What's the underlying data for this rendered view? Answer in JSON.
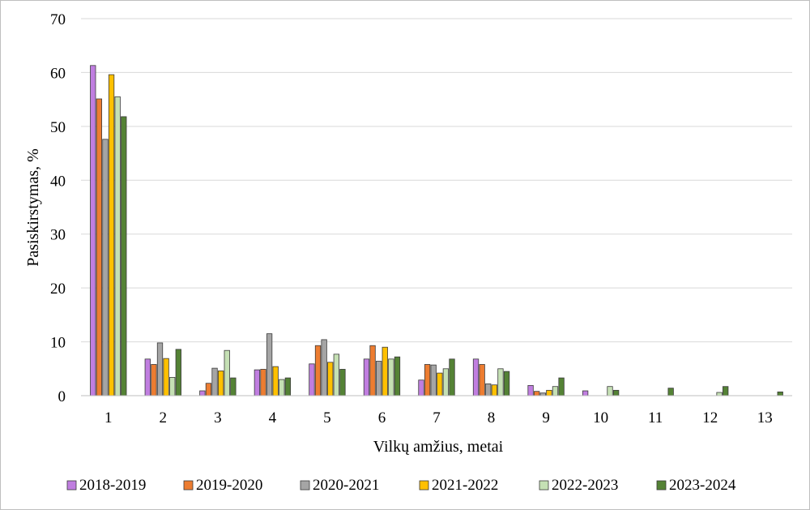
{
  "chart_data": {
    "type": "bar",
    "title": "",
    "xlabel": "Vilkų amžius, metai",
    "ylabel": "Pasiskirstymas, %",
    "ylim": [
      0,
      70
    ],
    "yticks": [
      0,
      10,
      20,
      30,
      40,
      50,
      60,
      70
    ],
    "grid": true,
    "legend_position": "bottom",
    "categories": [
      "1",
      "2",
      "3",
      "4",
      "5",
      "6",
      "7",
      "8",
      "9",
      "10",
      "11",
      "12",
      "13"
    ],
    "series": [
      {
        "name": "2018-2019",
        "color": "#c07ee0",
        "values": [
          61.3,
          6.8,
          0.9,
          4.8,
          5.9,
          6.8,
          2.9,
          6.8,
          1.9,
          0.9,
          0,
          0,
          0
        ]
      },
      {
        "name": "2019-2020",
        "color": "#ed7d31",
        "values": [
          55.1,
          5.8,
          2.3,
          4.9,
          9.3,
          9.3,
          5.8,
          5.8,
          0.8,
          0,
          0,
          0,
          0
        ]
      },
      {
        "name": "2020-2021",
        "color": "#a5a5a5",
        "values": [
          47.6,
          9.8,
          5.1,
          11.5,
          10.4,
          6.4,
          5.7,
          2.2,
          0.5,
          0,
          0,
          0,
          0
        ]
      },
      {
        "name": "2021-2022",
        "color": "#ffc000",
        "values": [
          59.6,
          6.9,
          4.6,
          5.4,
          6.2,
          9.0,
          4.2,
          2.0,
          1.0,
          0,
          0,
          0,
          0
        ]
      },
      {
        "name": "2022-2023",
        "color": "#c5e0b4",
        "values": [
          55.5,
          3.4,
          8.4,
          3.0,
          7.7,
          6.8,
          5.0,
          5.0,
          1.7,
          1.7,
          0,
          0.6,
          0
        ]
      },
      {
        "name": "2023-2024",
        "color": "#548235",
        "values": [
          51.8,
          8.6,
          3.3,
          3.3,
          4.9,
          7.2,
          6.8,
          4.5,
          3.3,
          1.0,
          1.4,
          1.7,
          0.7
        ]
      }
    ]
  }
}
